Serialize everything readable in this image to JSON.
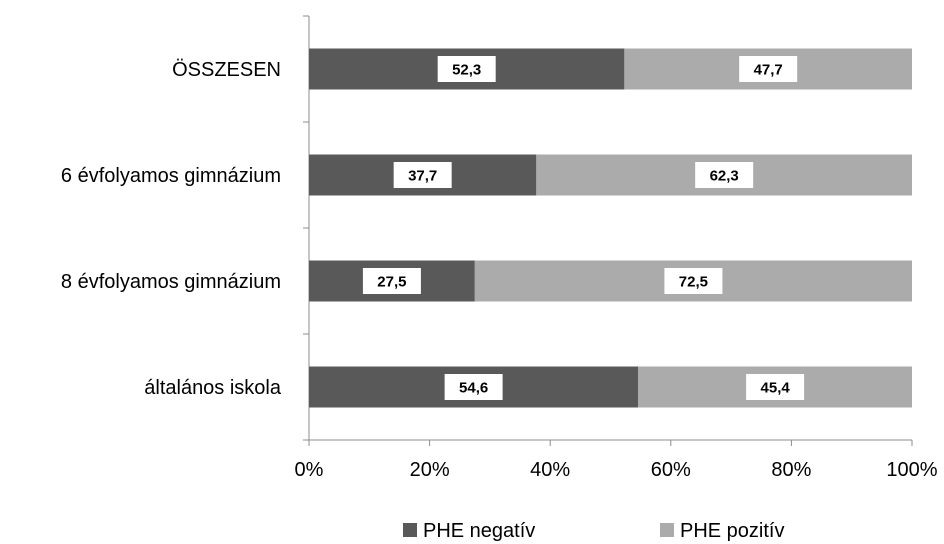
{
  "chart_data": {
    "type": "bar",
    "orientation": "horizontal",
    "stacked": "percent",
    "categories": [
      "ÖSSZESEN",
      "6 évfolyamos gimnázium",
      "8 évfolyamos gimnázium",
      "általános iskola"
    ],
    "series": [
      {
        "name": "PHE negatív",
        "values": [
          52.3,
          37.7,
          27.5,
          54.6
        ],
        "labels": [
          "52,3",
          "37,7",
          "27,5",
          "54,6"
        ],
        "color": "#595959"
      },
      {
        "name": "PHE pozitív",
        "values": [
          47.7,
          62.3,
          72.5,
          45.4
        ],
        "labels": [
          "47,7",
          "62,3",
          "72,5",
          "45,4"
        ],
        "color": "#ababab"
      }
    ],
    "xlim": [
      0,
      100
    ],
    "xticks": [
      "0%",
      "20%",
      "40%",
      "60%",
      "80%",
      "100%"
    ],
    "grid": false,
    "legend": "bottom"
  }
}
